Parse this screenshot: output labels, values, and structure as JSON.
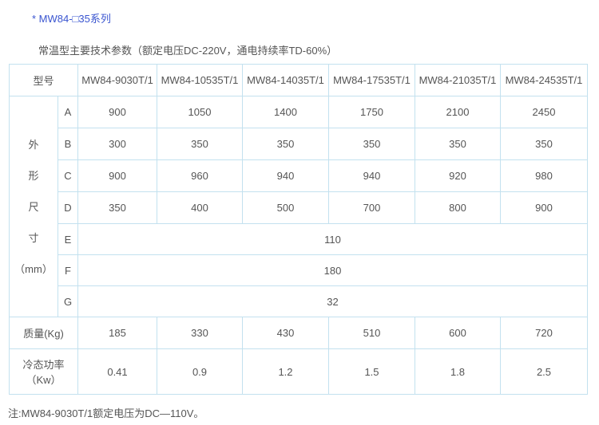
{
  "title": "* MW84-□35系列",
  "subtitle": "常温型主要技术参数（额定电压DC-220V，通电持续率TD-60%）",
  "table": {
    "model_label": "型号",
    "models": [
      "MW84-9030T/1",
      "MW84-10535T/1",
      "MW84-14035T/1",
      "MW84-17535T/1",
      "MW84-21035T/1",
      "MW84-24535T/1"
    ],
    "dim_label": [
      "外",
      "形",
      "尺",
      "寸",
      "（mm）"
    ],
    "dims": [
      {
        "key": "A",
        "values": [
          "900",
          "1050",
          "1400",
          "1750",
          "2100",
          "2450"
        ]
      },
      {
        "key": "B",
        "values": [
          "300",
          "350",
          "350",
          "350",
          "350",
          "350"
        ]
      },
      {
        "key": "C",
        "values": [
          "900",
          "960",
          "940",
          "940",
          "920",
          "980"
        ]
      },
      {
        "key": "D",
        "values": [
          "350",
          "400",
          "500",
          "700",
          "800",
          "900"
        ]
      }
    ],
    "shared": [
      {
        "key": "E",
        "value": "110"
      },
      {
        "key": "F",
        "value": "180"
      },
      {
        "key": "G",
        "value": "32"
      }
    ],
    "mass_label": "质量(Kg)",
    "mass": [
      "185",
      "330",
      "430",
      "510",
      "600",
      "720"
    ],
    "power_label": "冷态功率",
    "power_unit": "（Kw）",
    "power": [
      "0.41",
      "0.9",
      "1.2",
      "1.5",
      "1.8",
      "2.5"
    ]
  },
  "note": "注:MW84-9030T/1额定电压为DC—110V。"
}
